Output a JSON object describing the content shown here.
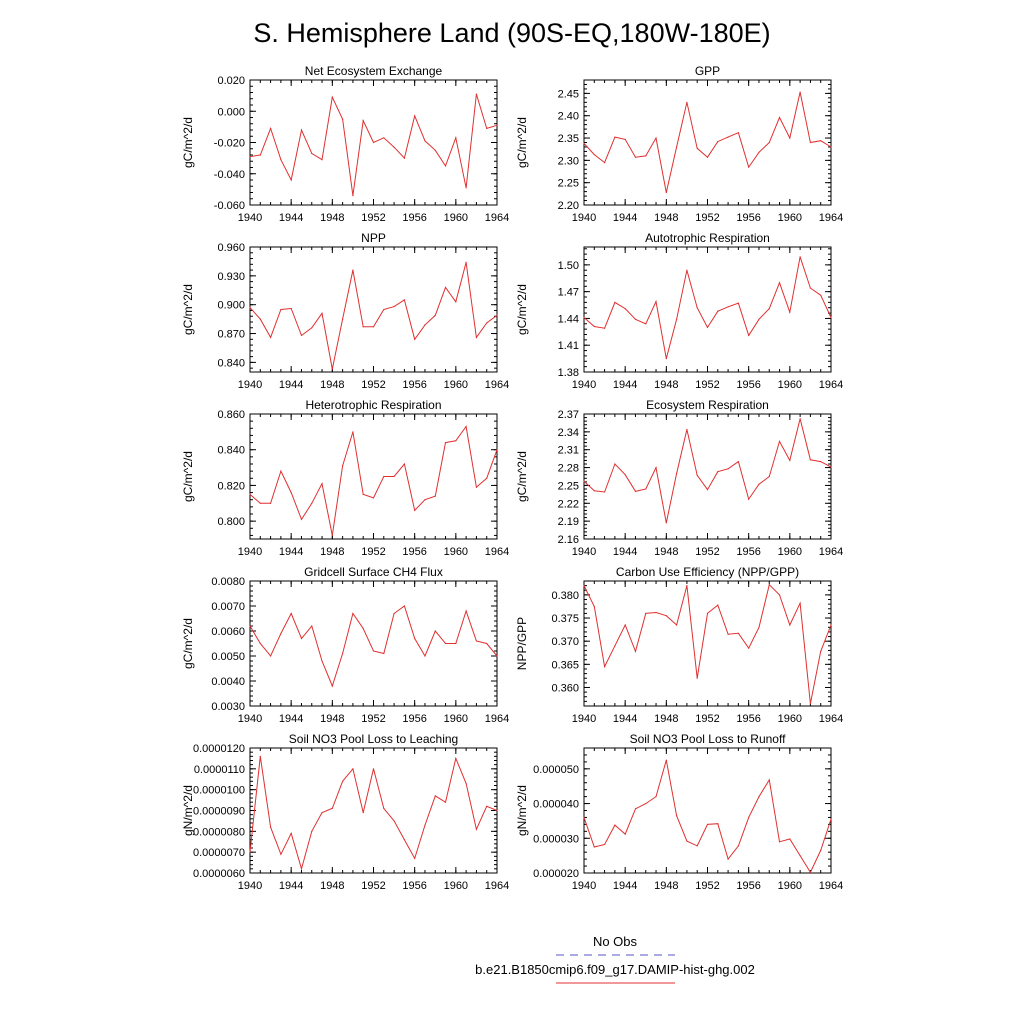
{
  "title": "S. Hemisphere Land (90S-EQ,180W-180E)",
  "legend": {
    "items": [
      {
        "label": "No Obs",
        "color": "#5555cc",
        "dash": true
      },
      {
        "label": "b.e21.B1850cmip6.f09_g17.DAMIP-hist-ghg.002",
        "color": "#e03030",
        "dash": false
      }
    ]
  },
  "chart_data": [
    {
      "type": "line",
      "title": "Net Ecosystem Exchange",
      "ylabel": "gC/m^2/d",
      "xlim": [
        1940,
        1964
      ],
      "xticks": [
        "1940",
        "1944",
        "1948",
        "1952",
        "1956",
        "1960",
        "1964"
      ],
      "ylim": [
        -0.06,
        0.02
      ],
      "yticks": [
        "-0.060",
        "-0.040",
        "-0.020",
        "0.000",
        "0.020"
      ],
      "x": [
        1940,
        1941,
        1942,
        1943,
        1944,
        1945,
        1946,
        1947,
        1948,
        1949,
        1950,
        1951,
        1952,
        1953,
        1954,
        1955,
        1956,
        1957,
        1958,
        1959,
        1960,
        1961,
        1962,
        1963,
        1964
      ],
      "series": [
        {
          "name": "b.e21.B1850cmip6.f09_g17.DAMIP-hist-ghg.002",
          "color": "#e03030",
          "values": [
            -0.029,
            -0.028,
            -0.011,
            -0.031,
            -0.044,
            -0.012,
            -0.027,
            -0.031,
            0.009,
            -0.005,
            -0.054,
            -0.006,
            -0.02,
            -0.017,
            -0.023,
            -0.03,
            -0.003,
            -0.019,
            -0.025,
            -0.035,
            -0.017,
            -0.049,
            0.011,
            -0.011,
            -0.009
          ]
        }
      ]
    },
    {
      "type": "line",
      "title": "GPP",
      "ylabel": "gC/m^2/d",
      "xlim": [
        1940,
        1964
      ],
      "xticks": [
        "1940",
        "1944",
        "1948",
        "1952",
        "1956",
        "1960",
        "1964"
      ],
      "ylim": [
        2.2,
        2.48
      ],
      "yticks": [
        "2.20",
        "2.25",
        "2.30",
        "2.35",
        "2.40",
        "2.45"
      ],
      "x": [
        1940,
        1941,
        1942,
        1943,
        1944,
        1945,
        1946,
        1947,
        1948,
        1949,
        1950,
        1951,
        1952,
        1953,
        1954,
        1955,
        1956,
        1957,
        1958,
        1959,
        1960,
        1961,
        1962,
        1963,
        1964
      ],
      "series": [
        {
          "name": "b.e21.B1850cmip6.f09_g17.DAMIP-hist-ghg.002",
          "color": "#e03030",
          "values": [
            2.338,
            2.313,
            2.295,
            2.352,
            2.347,
            2.307,
            2.31,
            2.35,
            2.228,
            2.33,
            2.43,
            2.327,
            2.307,
            2.342,
            2.352,
            2.362,
            2.285,
            2.318,
            2.34,
            2.396,
            2.35,
            2.453,
            2.34,
            2.344,
            2.33
          ]
        }
      ]
    },
    {
      "type": "line",
      "title": "NPP",
      "ylabel": "gC/m^2/d",
      "xlim": [
        1940,
        1964
      ],
      "xticks": [
        "1940",
        "1944",
        "1948",
        "1952",
        "1956",
        "1960",
        "1964"
      ],
      "ylim": [
        0.83,
        0.96
      ],
      "yticks": [
        "0.840",
        "0.870",
        "0.900",
        "0.930",
        "0.960"
      ],
      "x": [
        1940,
        1941,
        1942,
        1943,
        1944,
        1945,
        1946,
        1947,
        1948,
        1949,
        1950,
        1951,
        1952,
        1953,
        1954,
        1955,
        1956,
        1957,
        1958,
        1959,
        1960,
        1961,
        1962,
        1963,
        1964
      ],
      "series": [
        {
          "name": "b.e21.B1850cmip6.f09_g17.DAMIP-hist-ghg.002",
          "color": "#e03030",
          "values": [
            0.897,
            0.885,
            0.866,
            0.895,
            0.896,
            0.868,
            0.876,
            0.891,
            0.833,
            0.885,
            0.936,
            0.877,
            0.877,
            0.895,
            0.898,
            0.905,
            0.864,
            0.879,
            0.889,
            0.918,
            0.903,
            0.944,
            0.866,
            0.881,
            0.889
          ]
        }
      ]
    },
    {
      "type": "line",
      "title": "Autotrophic Respiration",
      "ylabel": "gC/m^2/d",
      "xlim": [
        1940,
        1964
      ],
      "xticks": [
        "1940",
        "1944",
        "1948",
        "1952",
        "1956",
        "1960",
        "1964"
      ],
      "ylim": [
        1.38,
        1.52
      ],
      "yticks": [
        "1.38",
        "1.41",
        "1.44",
        "1.47",
        "1.50"
      ],
      "x": [
        1940,
        1941,
        1942,
        1943,
        1944,
        1945,
        1946,
        1947,
        1948,
        1949,
        1950,
        1951,
        1952,
        1953,
        1954,
        1955,
        1956,
        1957,
        1958,
        1959,
        1960,
        1961,
        1962,
        1963,
        1964
      ],
      "series": [
        {
          "name": "b.e21.B1850cmip6.f09_g17.DAMIP-hist-ghg.002",
          "color": "#e03030",
          "values": [
            1.441,
            1.431,
            1.429,
            1.458,
            1.451,
            1.439,
            1.434,
            1.459,
            1.395,
            1.439,
            1.494,
            1.452,
            1.43,
            1.448,
            1.453,
            1.457,
            1.421,
            1.439,
            1.451,
            1.48,
            1.447,
            1.509,
            1.474,
            1.466,
            1.441
          ]
        }
      ]
    },
    {
      "type": "line",
      "title": "Heterotrophic Respiration",
      "ylabel": "gC/m^2/d",
      "xlim": [
        1940,
        1964
      ],
      "xticks": [
        "1940",
        "1944",
        "1948",
        "1952",
        "1956",
        "1960",
        "1964"
      ],
      "ylim": [
        0.79,
        0.86
      ],
      "yticks": [
        "0.800",
        "0.820",
        "0.840",
        "0.860"
      ],
      "x": [
        1940,
        1941,
        1942,
        1943,
        1944,
        1945,
        1946,
        1947,
        1948,
        1949,
        1950,
        1951,
        1952,
        1953,
        1954,
        1955,
        1956,
        1957,
        1958,
        1959,
        1960,
        1961,
        1962,
        1963,
        1964
      ],
      "series": [
        {
          "name": "b.e21.B1850cmip6.f09_g17.DAMIP-hist-ghg.002",
          "color": "#e03030",
          "values": [
            0.815,
            0.81,
            0.81,
            0.828,
            0.816,
            0.801,
            0.81,
            0.821,
            0.792,
            0.831,
            0.85,
            0.815,
            0.813,
            0.825,
            0.825,
            0.832,
            0.806,
            0.812,
            0.814,
            0.844,
            0.845,
            0.853,
            0.819,
            0.824,
            0.84
          ]
        }
      ]
    },
    {
      "type": "line",
      "title": "Ecosystem Respiration",
      "ylabel": "gC/m^2/d",
      "xlim": [
        1940,
        1964
      ],
      "xticks": [
        "1940",
        "1944",
        "1948",
        "1952",
        "1956",
        "1960",
        "1964"
      ],
      "ylim": [
        2.16,
        2.37
      ],
      "yticks": [
        "2.16",
        "2.19",
        "2.22",
        "2.25",
        "2.28",
        "2.31",
        "2.34",
        "2.37"
      ],
      "x": [
        1940,
        1941,
        1942,
        1943,
        1944,
        1945,
        1946,
        1947,
        1948,
        1949,
        1950,
        1951,
        1952,
        1953,
        1954,
        1955,
        1956,
        1957,
        1958,
        1959,
        1960,
        1961,
        1962,
        1963,
        1964
      ],
      "series": [
        {
          "name": "b.e21.B1850cmip6.f09_g17.DAMIP-hist-ghg.002",
          "color": "#e03030",
          "values": [
            2.257,
            2.241,
            2.239,
            2.286,
            2.268,
            2.24,
            2.244,
            2.28,
            2.187,
            2.27,
            2.344,
            2.267,
            2.243,
            2.273,
            2.278,
            2.29,
            2.227,
            2.252,
            2.265,
            2.324,
            2.292,
            2.362,
            2.293,
            2.29,
            2.281
          ]
        }
      ]
    },
    {
      "type": "line",
      "title": "Gridcell Surface CH4 Flux",
      "ylabel": "gC/m^2/d",
      "xlim": [
        1940,
        1964
      ],
      "xticks": [
        "1940",
        "1944",
        "1948",
        "1952",
        "1956",
        "1960",
        "1964"
      ],
      "ylim": [
        0.003,
        0.008
      ],
      "yticks": [
        "0.0030",
        "0.0040",
        "0.0050",
        "0.0060",
        "0.0070",
        "0.0080"
      ],
      "x": [
        1940,
        1941,
        1942,
        1943,
        1944,
        1945,
        1946,
        1947,
        1948,
        1949,
        1950,
        1951,
        1952,
        1953,
        1954,
        1955,
        1956,
        1957,
        1958,
        1959,
        1960,
        1961,
        1962,
        1963,
        1964
      ],
      "series": [
        {
          "name": "b.e21.B1850cmip6.f09_g17.DAMIP-hist-ghg.002",
          "color": "#e03030",
          "values": [
            0.0062,
            0.0055,
            0.005,
            0.0059,
            0.0067,
            0.0057,
            0.0062,
            0.0048,
            0.0038,
            0.0051,
            0.0067,
            0.0061,
            0.0052,
            0.0051,
            0.0067,
            0.007,
            0.0057,
            0.005,
            0.006,
            0.0055,
            0.0055,
            0.0068,
            0.0056,
            0.0055,
            0.005
          ]
        }
      ]
    },
    {
      "type": "line",
      "title": "Carbon Use Efficiency (NPP/GPP)",
      "ylabel": "NPP/GPP",
      "xlim": [
        1940,
        1964
      ],
      "xticks": [
        "1940",
        "1944",
        "1948",
        "1952",
        "1956",
        "1960",
        "1964"
      ],
      "ylim": [
        0.356,
        0.383
      ],
      "yticks": [
        "0.360",
        "0.365",
        "0.370",
        "0.375",
        "0.380"
      ],
      "x": [
        1940,
        1941,
        1942,
        1943,
        1944,
        1945,
        1946,
        1947,
        1948,
        1949,
        1950,
        1951,
        1952,
        1953,
        1954,
        1955,
        1956,
        1957,
        1958,
        1959,
        1960,
        1961,
        1962,
        1963,
        1964
      ],
      "series": [
        {
          "name": "b.e21.B1850cmip6.f09_g17.DAMIP-hist-ghg.002",
          "color": "#e03030",
          "values": [
            0.382,
            0.3775,
            0.3645,
            0.369,
            0.3735,
            0.3678,
            0.376,
            0.3762,
            0.3755,
            0.3735,
            0.382,
            0.362,
            0.376,
            0.3778,
            0.3715,
            0.3717,
            0.3685,
            0.373,
            0.3822,
            0.38,
            0.3735,
            0.3782,
            0.3565,
            0.3678,
            0.3735
          ]
        }
      ]
    },
    {
      "type": "line",
      "title": "Soil NO3 Pool Loss to Leaching",
      "ylabel": "gN/m^2/d",
      "xlim": [
        1940,
        1964
      ],
      "xticks": [
        "1940",
        "1944",
        "1948",
        "1952",
        "1956",
        "1960",
        "1964"
      ],
      "ylim": [
        6e-06,
        1.2e-05
      ],
      "yticks": [
        "0.0000060",
        "0.0000070",
        "0.0000080",
        "0.0000090",
        "0.0000100",
        "0.0000110",
        "0.0000120"
      ],
      "x": [
        1940,
        1941,
        1942,
        1943,
        1944,
        1945,
        1946,
        1947,
        1948,
        1949,
        1950,
        1951,
        1952,
        1953,
        1954,
        1955,
        1956,
        1957,
        1958,
        1959,
        1960,
        1961,
        1962,
        1963,
        1964
      ],
      "series": [
        {
          "name": "b.e21.B1850cmip6.f09_g17.DAMIP-hist-ghg.002",
          "color": "#e03030",
          "values": [
            7e-06,
            1.16e-05,
            8.2e-06,
            6.9e-06,
            7.9e-06,
            6.2e-06,
            8e-06,
            8.9e-06,
            9.1e-06,
            1.04e-05,
            1.1e-05,
            8.9e-06,
            1.1e-05,
            9.1e-06,
            8.5e-06,
            7.6e-06,
            6.7e-06,
            8.3e-06,
            9.7e-06,
            9.4e-06,
            1.15e-05,
            1.03e-05,
            8.1e-06,
            9.2e-06,
            9e-06
          ]
        }
      ]
    },
    {
      "type": "line",
      "title": "Soil NO3 Pool Loss to Runoff",
      "ylabel": "gN/m^2/d",
      "xlim": [
        1940,
        1964
      ],
      "xticks": [
        "1940",
        "1944",
        "1948",
        "1952",
        "1956",
        "1960",
        "1964"
      ],
      "ylim": [
        2e-05,
        5.6e-05
      ],
      "yticks": [
        "0.000020",
        "0.000030",
        "0.000040",
        "0.000050"
      ],
      "x": [
        1940,
        1941,
        1942,
        1943,
        1944,
        1945,
        1946,
        1947,
        1948,
        1949,
        1950,
        1951,
        1952,
        1953,
        1954,
        1955,
        1956,
        1957,
        1958,
        1959,
        1960,
        1961,
        1962,
        1963,
        1964
      ],
      "series": [
        {
          "name": "b.e21.B1850cmip6.f09_g17.DAMIP-hist-ghg.002",
          "color": "#e03030",
          "values": [
            3.6e-05,
            2.75e-05,
            2.82e-05,
            3.38e-05,
            3.12e-05,
            3.85e-05,
            4e-05,
            4.2e-05,
            5.25e-05,
            3.65e-05,
            2.92e-05,
            2.78e-05,
            3.4e-05,
            3.42e-05,
            2.4e-05,
            2.78e-05,
            3.6e-05,
            4.2e-05,
            4.68e-05,
            2.9e-05,
            2.98e-05,
            2.5e-05,
            2.02e-05,
            2.65e-05,
            3.55e-05
          ]
        }
      ]
    }
  ]
}
